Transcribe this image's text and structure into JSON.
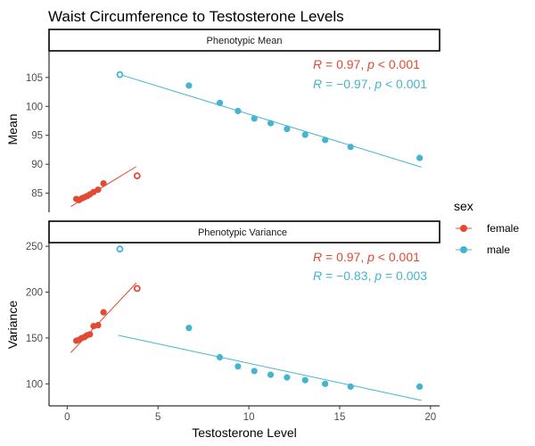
{
  "chart_data": {
    "type": "scatter",
    "title": "Waist Circumference to Testosterone Levels",
    "xlabel": "Testosterone Level",
    "xlim": [
      -1,
      20.5
    ],
    "xticks": [
      0,
      5,
      10,
      15,
      20
    ],
    "colors": {
      "female": "#e24a33",
      "male": "#45b4cf"
    },
    "legend": {
      "title": "sex",
      "entries": [
        "female",
        "male"
      ],
      "position": "right"
    },
    "panels": [
      {
        "strip": "Phenotypic Mean",
        "ylabel": "Mean",
        "ylim": [
          81.7,
          109.6
        ],
        "yticks": [
          85,
          90,
          95,
          100,
          105
        ],
        "series": [
          {
            "name": "female",
            "points": [
              [
                0.5,
                84.0
              ],
              [
                0.65,
                83.8
              ],
              [
                0.8,
                84.1
              ],
              [
                0.95,
                84.3
              ],
              [
                1.1,
                84.5
              ],
              [
                1.25,
                84.8
              ],
              [
                1.45,
                85.2
              ],
              [
                1.7,
                85.6
              ],
              [
                2.0,
                86.7
              ]
            ],
            "outlier": [
              3.85,
              88.0
            ],
            "fit": [
              [
                0.2,
                82.7
              ],
              [
                3.8,
                89.6
              ]
            ],
            "stat_r": "0.97",
            "stat_p": "0.001",
            "stat_op": "<"
          },
          {
            "name": "male",
            "points": [
              [
                6.7,
                103.6
              ],
              [
                8.4,
                100.6
              ],
              [
                9.4,
                99.2
              ],
              [
                10.3,
                97.9
              ],
              [
                11.2,
                97.1
              ],
              [
                12.1,
                96.1
              ],
              [
                13.1,
                95.1
              ],
              [
                14.2,
                94.2
              ],
              [
                15.6,
                93.0
              ],
              [
                19.4,
                91.1
              ]
            ],
            "outlier": [
              2.9,
              105.5
            ],
            "fit": [
              [
                2.8,
                105.6
              ],
              [
                19.5,
                89.5
              ]
            ],
            "stat_r": "−0.97",
            "stat_p": "0.001",
            "stat_op": "<"
          }
        ]
      },
      {
        "strip": "Phenotypic Variance",
        "ylabel": "Variance",
        "ylim": [
          76,
          254
        ],
        "yticks": [
          100,
          150,
          200,
          250
        ],
        "series": [
          {
            "name": "female",
            "points": [
              [
                0.5,
                147
              ],
              [
                0.65,
                148
              ],
              [
                0.8,
                150
              ],
              [
                0.95,
                151
              ],
              [
                1.1,
                153
              ],
              [
                1.25,
                154
              ],
              [
                1.45,
                163
              ],
              [
                1.7,
                164
              ],
              [
                2.0,
                178
              ]
            ],
            "outlier": [
              3.85,
              204
            ],
            "fit": [
              [
                0.2,
                134
              ],
              [
                3.8,
                210
              ]
            ],
            "stat_r": "0.97",
            "stat_p": "0.001",
            "stat_op": "<"
          },
          {
            "name": "male",
            "points": [
              [
                6.7,
                161
              ],
              [
                8.4,
                129
              ],
              [
                9.4,
                119
              ],
              [
                10.3,
                114
              ],
              [
                11.2,
                110
              ],
              [
                12.1,
                107
              ],
              [
                13.1,
                104
              ],
              [
                14.2,
                100
              ],
              [
                15.6,
                97
              ],
              [
                19.4,
                97
              ]
            ],
            "outlier": [
              2.9,
              247
            ],
            "fit": [
              [
                2.8,
                153
              ],
              [
                19.5,
                82
              ]
            ],
            "stat_r": "−0.83",
            "stat_p": "0.003",
            "stat_op": "="
          }
        ]
      }
    ]
  }
}
